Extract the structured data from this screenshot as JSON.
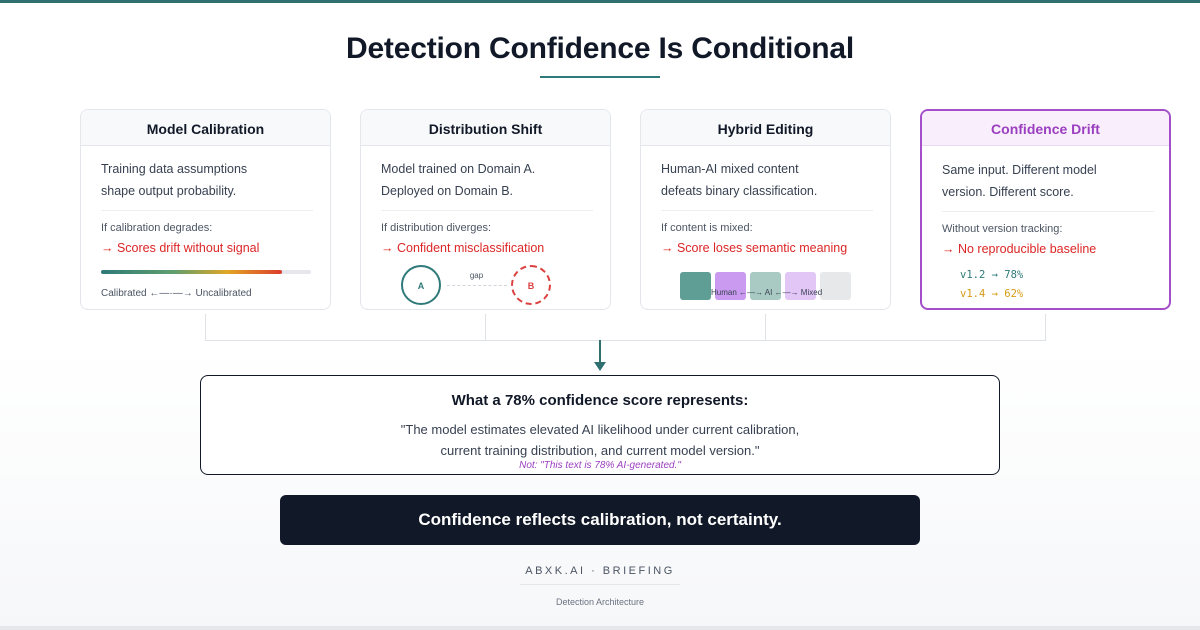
{
  "title": "Detection Confidence Is Conditional",
  "cards": [
    {
      "heading": "Model Calibration",
      "desc1": "Training data assumptions",
      "desc2": "shape output probability.",
      "condition": "If calibration degrades:",
      "consequence": "→ Scores drift without signal",
      "calibration_level": 0.86,
      "caption": "Calibrated ←—·—→ Uncalibrated"
    },
    {
      "heading": "Distribution Shift",
      "desc1": "Model trained on Domain A.",
      "desc2": "Deployed on Domain B.",
      "condition": "If distribution diverges:",
      "consequence": "→ Confident misclassification",
      "circle_a": "A",
      "circle_b": "B",
      "gap_label": "gap"
    },
    {
      "heading": "Hybrid Editing",
      "desc1": "Human-AI mixed content",
      "desc2": "defeats binary classification.",
      "condition": "If content is mixed:",
      "consequence": "→ Score loses semantic meaning",
      "caption": "Human ←—→ AI ←—→ Mixed"
    },
    {
      "heading": "Confidence Drift",
      "desc1": "Same input. Different model",
      "desc2": "version. Different score.",
      "condition": "Without version tracking:",
      "consequence": "→ No reproducible baseline",
      "version_1": "v1.2 → 78%",
      "version_2": "v1.4 → 62%"
    }
  ],
  "summary": {
    "title": "What a 78% confidence score represents:",
    "quote_line1": "\"The model estimates elevated AI likelihood under current calibration,",
    "quote_line2": "current training distribution, and current model version.\"",
    "note": "Not: \"This text is 78% AI-generated.\""
  },
  "banner": "Confidence reflects calibration, not certainty.",
  "brand": "ABXK.AI · BRIEFING",
  "footnote": "Detection Architecture",
  "colors": {
    "accent_teal": "#2f7a78",
    "alert_red": "#dc2626",
    "drift_purple": "#a44ec9",
    "amber": "#d59b16",
    "banner_dark": "#111827"
  }
}
